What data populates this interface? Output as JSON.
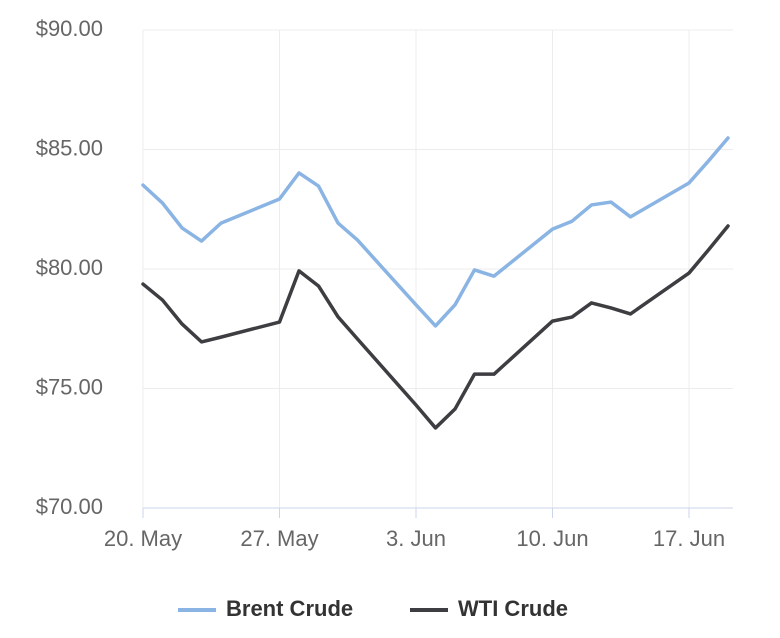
{
  "chart_data": {
    "type": "line",
    "x": [
      "20. May",
      "21. May",
      "22. May",
      "23. May",
      "24. May",
      "27. May",
      "28. May",
      "29. May",
      "30. May",
      "31. May",
      "3. Jun",
      "4. Jun",
      "5. Jun",
      "6. Jun",
      "7. Jun",
      "10. Jun",
      "11. Jun",
      "12. Jun",
      "13. Jun",
      "14. Jun",
      "17. Jun",
      "18. Jun",
      "19. Jun"
    ],
    "series": [
      {
        "name": "Brent Crude",
        "color": "#8ab4e3",
        "values": [
          83.51,
          82.76,
          81.72,
          81.17,
          81.92,
          82.93,
          84.02,
          83.47,
          81.92,
          81.21,
          78.5,
          77.62,
          78.5,
          79.96,
          79.7,
          81.67,
          82.0,
          82.68,
          82.8,
          82.18,
          83.6,
          84.52,
          85.48
        ]
      },
      {
        "name": "WTI Crude",
        "color": "#3d3d42",
        "values": [
          79.37,
          78.7,
          77.7,
          76.95,
          77.15,
          77.78,
          79.92,
          79.29,
          78.0,
          77.07,
          74.31,
          73.35,
          74.14,
          75.6,
          75.6,
          77.82,
          77.99,
          78.58,
          78.37,
          78.12,
          79.83,
          80.8,
          81.8
        ]
      }
    ],
    "xticks": [
      "20. May",
      "27. May",
      "3. Jun",
      "10. Jun",
      "17. Jun"
    ],
    "ylim": [
      70,
      90
    ],
    "yticks": [
      {
        "value": 70,
        "label": "$70.00"
      },
      {
        "value": 75,
        "label": "$75.00"
      },
      {
        "value": 80,
        "label": "$80.00"
      },
      {
        "value": 85,
        "label": "$85.00"
      },
      {
        "value": 90,
        "label": "$90.00"
      }
    ],
    "grid": true,
    "legend": "bottom"
  }
}
